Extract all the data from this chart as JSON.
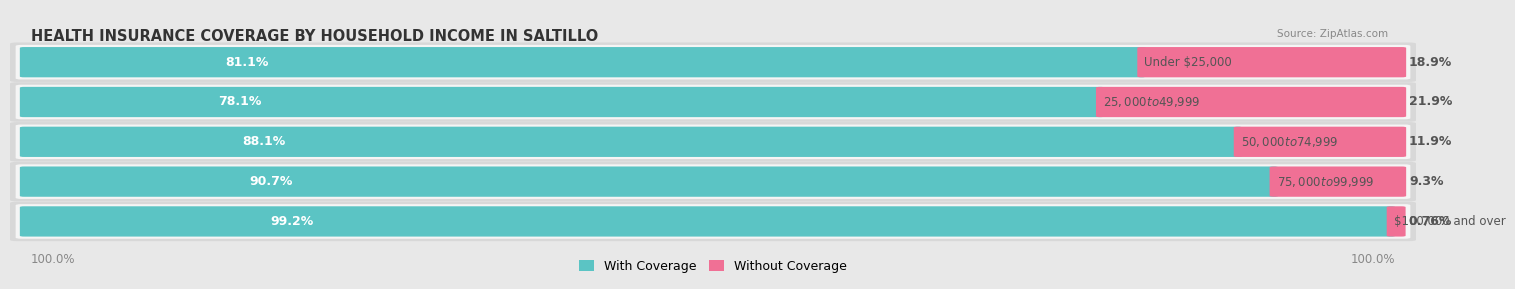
{
  "title": "HEALTH INSURANCE COVERAGE BY HOUSEHOLD INCOME IN SALTILLO",
  "source": "Source: ZipAtlas.com",
  "categories": [
    "Under $25,000",
    "$25,000 to $49,999",
    "$50,000 to $74,999",
    "$75,000 to $99,999",
    "$100,000 and over"
  ],
  "with_coverage": [
    81.1,
    78.1,
    88.1,
    90.7,
    99.2
  ],
  "without_coverage": [
    18.9,
    21.9,
    11.9,
    9.3,
    0.76
  ],
  "with_coverage_color": "#5bc4c4",
  "without_coverage_color": "#f07095",
  "background_color": "#e8e8e8",
  "bar_background_color": "#f5f5f5",
  "bar_row_bg_color": "#d8d8d8",
  "legend_labels": [
    "With Coverage",
    "Without Coverage"
  ],
  "title_fontsize": 10.5,
  "label_fontsize": 9,
  "source_fontsize": 7.5,
  "tick_fontsize": 8.5,
  "with_label_color": "#ffffff",
  "cat_label_color": "#555555",
  "without_label_color": "#555555",
  "bottom_label_color": "#888888"
}
